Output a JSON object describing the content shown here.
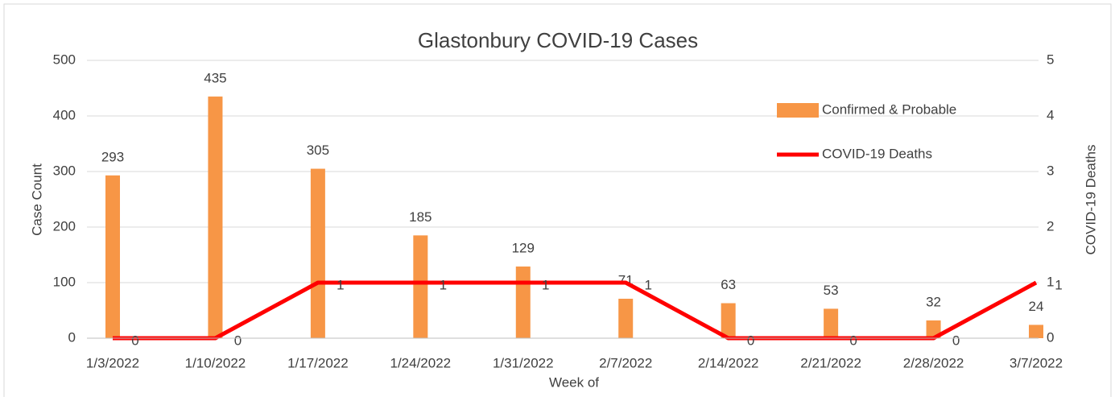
{
  "chart_data": {
    "type": "bar",
    "title": "Glastonbury COVID-19 Cases",
    "x_label": "Week of",
    "y_label": "Case Count",
    "y2_label": "COVID-19 Deaths",
    "categories": [
      "1/3/2022",
      "1/10/2022",
      "1/17/2022",
      "1/24/2022",
      "1/31/2022",
      "2/7/2022",
      "2/14/2022",
      "2/21/2022",
      "2/28/2022",
      "3/7/2022"
    ],
    "series": [
      {
        "name": "Confirmed & Probable",
        "type": "bar",
        "color": "#f79646",
        "values": [
          293,
          435,
          305,
          185,
          129,
          71,
          63,
          53,
          32,
          24
        ]
      },
      {
        "name": "COVID-19 Deaths",
        "type": "line",
        "axis": "y2",
        "color": "#ff0000",
        "values": [
          0,
          0,
          1,
          1,
          1,
          1,
          0,
          0,
          0,
          1
        ]
      }
    ],
    "ylim": [
      0,
      500
    ],
    "yticks": [
      0,
      100,
      200,
      300,
      400,
      500
    ],
    "y2lim": [
      0,
      5
    ],
    "y2ticks": [
      0,
      1,
      2,
      3,
      4,
      5
    ],
    "grid": true,
    "legend": "upper right"
  }
}
